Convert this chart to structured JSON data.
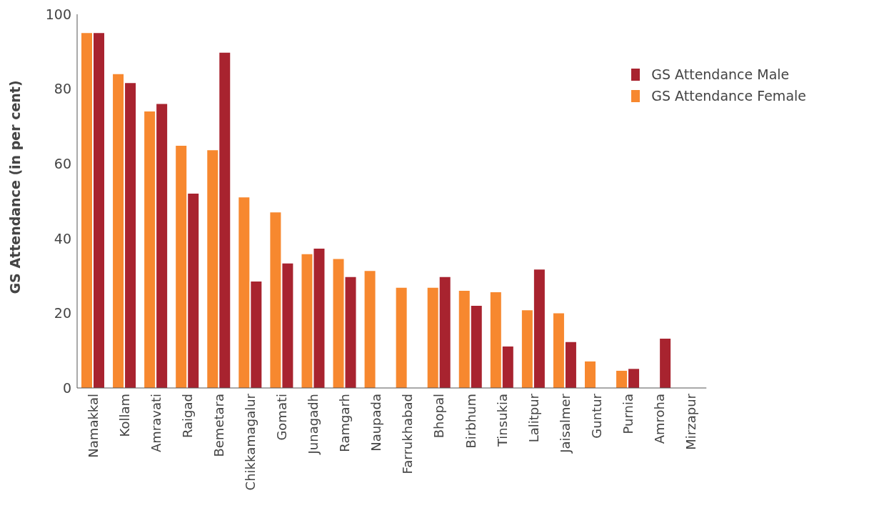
{
  "chart_data": {
    "type": "bar",
    "ylabel": "GS Attendance (in per cent)",
    "categories": [
      "Namakkal",
      "Kollam",
      "Amravati",
      "Raigad",
      "Bemetara",
      "Chikkamagalur",
      "Gomati",
      "Junagadh",
      "Ramgarh",
      "Naupada",
      "Farrukhabad",
      "Bhopal",
      "Birbhum",
      "Tinsukia",
      "Lalitpur",
      "Jaisalmer",
      "Guntur",
      "Purnia",
      "Amroha",
      "Mirzapur"
    ],
    "series": [
      {
        "name": "GS Attendance Male",
        "color": "#a8232f",
        "values": [
          95,
          81.6,
          76,
          52,
          89.7,
          28.5,
          33.3,
          37.3,
          29.7,
          null,
          null,
          29.7,
          22,
          11.1,
          31.7,
          12.3,
          null,
          5.1,
          13.2,
          null
        ]
      },
      {
        "name": "GS Attendance Female",
        "color": "#f7882f",
        "values": [
          95,
          84,
          74,
          64.8,
          63.6,
          51,
          47,
          35.8,
          34.5,
          31.3,
          26.8,
          26.8,
          26,
          25.6,
          20.8,
          20,
          7.1,
          4.6,
          null,
          null
        ]
      }
    ],
    "ylim": [
      0,
      100
    ],
    "yticks": [
      0,
      20,
      40,
      60,
      80,
      100
    ],
    "grid": false,
    "legend": "top right"
  }
}
